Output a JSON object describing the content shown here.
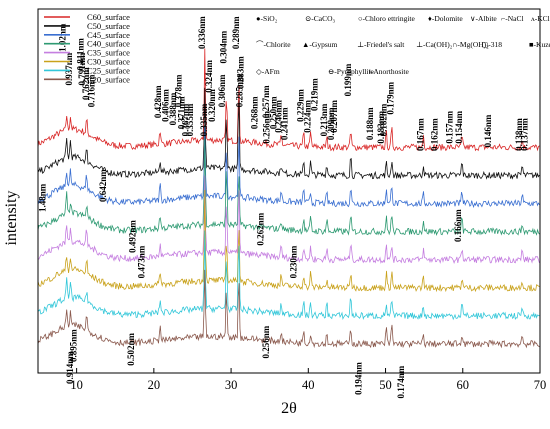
{
  "chart_data": {
    "type": "line",
    "xlabel": "2θ",
    "ylabel": "intensity",
    "xlim": [
      5,
      70
    ],
    "x_ticks": [
      10,
      20,
      30,
      40,
      50,
      60,
      70
    ],
    "y_ticks_shown": false,
    "grid": false,
    "legend_placement": "top-left",
    "series": [
      {
        "name": "C60_surface",
        "color": "#d92727"
      },
      {
        "name": "C50_surface",
        "color": "#111111"
      },
      {
        "name": "C45_surface",
        "color": "#3a6fd1"
      },
      {
        "name": "C40_surface",
        "color": "#2e9a72"
      },
      {
        "name": "C35_surface",
        "color": "#c57fe0"
      },
      {
        "name": "C30_surface",
        "color": "#c9a21c"
      },
      {
        "name": "C25_surface",
        "color": "#33c7d9"
      },
      {
        "name": "C20_surface",
        "color": "#8b5a4e"
      }
    ],
    "main_peaks_2theta": [
      8.7,
      9.2,
      11.3,
      20.8,
      26.6,
      29.4,
      31.0,
      36.5,
      39.4,
      40.3,
      42.4,
      45.5,
      50.1,
      50.8,
      54.9,
      59.9,
      67.7
    ],
    "phase_key": [
      {
        "symbol": "●",
        "label": "-SiO₂"
      },
      {
        "symbol": "⊙",
        "label": "-CaCO₃"
      },
      {
        "symbol": "○",
        "label": "-Chloro ettringite"
      },
      {
        "symbol": "♦",
        "label": "-Dolomite"
      },
      {
        "symbol": "∨",
        "label": "-Albite"
      },
      {
        "symbol": "⌐",
        "label": "-NaCl"
      },
      {
        "symbol": "ʌ",
        "label": "-KCl"
      },
      {
        "symbol": "⌒",
        "label": "-Chlorite"
      },
      {
        "symbol": "▲",
        "label": "-Gypsum"
      },
      {
        "symbol": "⊥",
        "label": "-Friedel's salt"
      },
      {
        "symbol": "⊥",
        "label": "-Ca(OH)₂"
      },
      {
        "symbol": "∩",
        "label": "-Mg(OH)₂"
      },
      {
        "symbol": "◻",
        "label": "-318"
      },
      {
        "symbol": "■",
        "label": "-Kuzel's salt"
      },
      {
        "symbol": "◇",
        "label": "-AFm"
      },
      {
        "symbol": "⊖",
        "label": "-Pyrophyllite"
      },
      {
        "symbol": "ǂ",
        "label": "-Anorthosite"
      }
    ],
    "d_spacing_labels": [
      {
        "text": "1.02nm",
        "x": 8.6,
        "y": 0.96
      },
      {
        "text": "0.937nm",
        "x": 9.4,
        "y": 0.88
      },
      {
        "text": "0.791nm",
        "x": 11.1,
        "y": 0.88
      },
      {
        "text": "0.811nm",
        "x": 10.9,
        "y": 0.92
      },
      {
        "text": "0.762nm",
        "x": 11.6,
        "y": 0.84
      },
      {
        "text": "0.716nm",
        "x": 12.3,
        "y": 0.82
      },
      {
        "text": "0.428nm",
        "x": 20.9,
        "y": 0.79
      },
      {
        "text": "0.406nm",
        "x": 21.9,
        "y": 0.78
      },
      {
        "text": "0.388nm",
        "x": 22.9,
        "y": 0.77
      },
      {
        "text": "0.378nm",
        "x": 23.6,
        "y": 0.82
      },
      {
        "text": "0.371nm",
        "x": 24.0,
        "y": 0.76
      },
      {
        "text": "0.367nm",
        "x": 24.5,
        "y": 0.74
      },
      {
        "text": "0.355nm",
        "x": 25.1,
        "y": 0.74
      },
      {
        "text": "0.336nm",
        "x": 26.6,
        "y": 0.98
      },
      {
        "text": "0.335nm",
        "x": 26.9,
        "y": 0.74
      },
      {
        "text": "0.324nm",
        "x": 27.5,
        "y": 0.86
      },
      {
        "text": "0.320nm",
        "x": 27.9,
        "y": 0.78
      },
      {
        "text": "0.306nm",
        "x": 29.2,
        "y": 0.82
      },
      {
        "text": "0.304nm",
        "x": 29.4,
        "y": 0.94
      },
      {
        "text": "0.289nm",
        "x": 31.0,
        "y": 0.98
      },
      {
        "text": "0.285nm",
        "x": 31.5,
        "y": 0.82
      },
      {
        "text": "0.283nm",
        "x": 31.6,
        "y": 0.87
      },
      {
        "text": "0.268nm",
        "x": 33.4,
        "y": 0.76
      },
      {
        "text": "0.262nm",
        "x": 34.2,
        "y": 0.44
      },
      {
        "text": "0.256nm",
        "x": 35.0,
        "y": 0.72
      },
      {
        "text": "0.257nm",
        "x": 34.9,
        "y": 0.79
      },
      {
        "text": "0.250nm",
        "x": 35.9,
        "y": 0.76
      },
      {
        "text": "0.246nm",
        "x": 36.5,
        "y": 0.75
      },
      {
        "text": "0.241nm",
        "x": 37.3,
        "y": 0.73
      },
      {
        "text": "0.229nm",
        "x": 39.4,
        "y": 0.78
      },
      {
        "text": "0.224nm",
        "x": 40.3,
        "y": 0.75
      },
      {
        "text": "0.219nm",
        "x": 41.2,
        "y": 0.81
      },
      {
        "text": "0.213nm",
        "x": 42.4,
        "y": 0.74
      },
      {
        "text": "0.209nm",
        "x": 43.3,
        "y": 0.73
      },
      {
        "text": "0.207nm",
        "x": 43.7,
        "y": 0.75
      },
      {
        "text": "0.199nm",
        "x": 45.5,
        "y": 0.85
      },
      {
        "text": "0.188nm",
        "x": 48.4,
        "y": 0.73
      },
      {
        "text": "0.183nm",
        "x": 49.8,
        "y": 0.72
      },
      {
        "text": "0.182nm",
        "x": 50.1,
        "y": 0.74
      },
      {
        "text": "0.179nm",
        "x": 51.0,
        "y": 0.8
      },
      {
        "text": "0.167nm",
        "x": 54.9,
        "y": 0.7
      },
      {
        "text": "0.162nm",
        "x": 56.7,
        "y": 0.7
      },
      {
        "text": "0.157nm",
        "x": 58.7,
        "y": 0.72
      },
      {
        "text": "0.154nm",
        "x": 59.9,
        "y": 0.72
      },
      {
        "text": "0.146nm",
        "x": 63.7,
        "y": 0.71
      },
      {
        "text": "0.138nm",
        "x": 67.7,
        "y": 0.7
      },
      {
        "text": "0.137nm",
        "x": 68.4,
        "y": 0.7
      },
      {
        "text": "1.48nm",
        "x": 6.0,
        "y": 0.52
      },
      {
        "text": "0.642nm",
        "x": 13.8,
        "y": 0.56
      },
      {
        "text": "0.492nm",
        "x": 17.6,
        "y": 0.42
      },
      {
        "text": "0.473nm",
        "x": 18.8,
        "y": 0.35
      },
      {
        "text": "0.230nm",
        "x": 38.5,
        "y": 0.35
      },
      {
        "text": "0.166nm",
        "x": 59.8,
        "y": 0.45
      },
      {
        "text": "0.914nm",
        "x": 9.5,
        "y": 0.06
      },
      {
        "text": "0.895nm",
        "x": 10.0,
        "y": 0.12
      },
      {
        "text": "0.502nm",
        "x": 17.4,
        "y": 0.11
      },
      {
        "text": "0.256nm",
        "x": 34.9,
        "y": 0.13
      },
      {
        "text": "0.194nm",
        "x": 46.9,
        "y": 0.03
      },
      {
        "text": "0.174nm",
        "x": 52.4,
        "y": 0.02
      }
    ]
  }
}
